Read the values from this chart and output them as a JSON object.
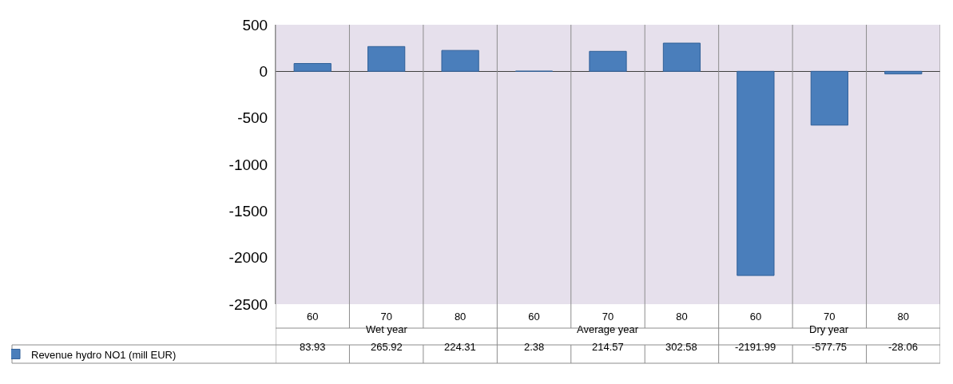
{
  "chart_data": {
    "type": "bar",
    "categories": [
      "60",
      "70",
      "80",
      "60",
      "70",
      "80",
      "60",
      "70",
      "80"
    ],
    "series": [
      {
        "name": "Revenue hydro NO1 (mill EUR)",
        "color": "#4a7ebb",
        "values": [
          83.93,
          265.92,
          224.31,
          2.38,
          214.57,
          302.58,
          -2191.99,
          -577.75,
          -28.06
        ]
      }
    ],
    "annotations": [
      "Wet year",
      "Average year",
      "Dry year"
    ],
    "ylim": [
      -2500,
      500
    ],
    "yticks": [
      -2500,
      -2000,
      -1500,
      -1000,
      -500,
      0,
      500
    ],
    "data_labels": true,
    "grid": "x",
    "legend": "bottom left"
  }
}
